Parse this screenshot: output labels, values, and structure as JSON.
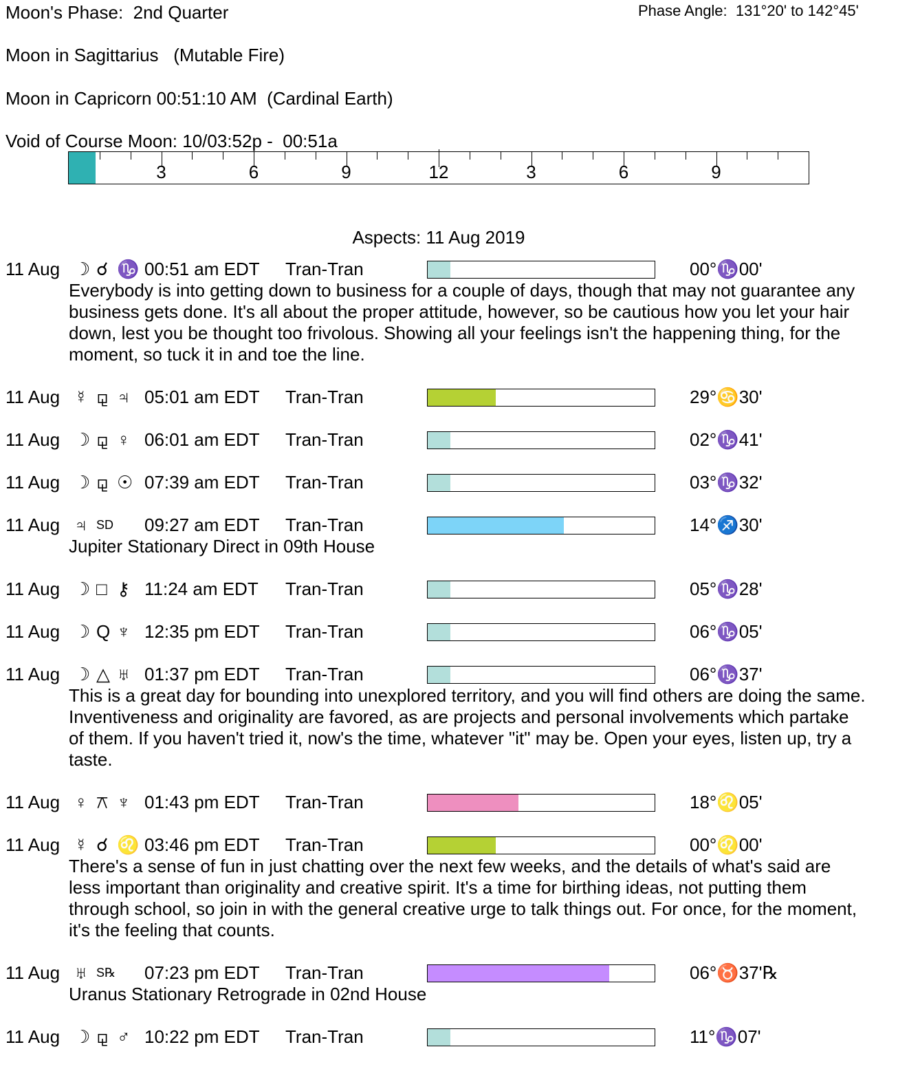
{
  "header": {
    "phase": "Moon's Phase:  2nd Quarter",
    "phase_angle": "Phase Angle:  131°20' to 142°45'",
    "moon_sign": "Moon in Sagittarius   (Mutable Fire)",
    "moon_ingress": "Moon in Capricorn 00:51:10 AM  (Cardinal Earth)",
    "void": "Void of Course Moon: 10/03:52p -  00:51a"
  },
  "timeline": {
    "labels": [
      "3",
      "6",
      "9",
      "12",
      "3",
      "6",
      "9"
    ],
    "void_fraction": 0.036,
    "void_color": "#2fb1b2"
  },
  "aspects_title": "Aspects: 11 Aug 2019",
  "entries": [
    {
      "date": "11 Aug",
      "p1": "☽",
      "asp": "☌",
      "p2": "♑",
      "time": "00:51 am EDT",
      "type": "Tran-Tran",
      "strength": 0.1,
      "color": "#b3dfdb",
      "pos": "00°♑00'",
      "desc": "Everybody is into getting down to business for a couple of days, though that may not guarantee any business gets done. It's all about the proper attitude, however, so be cautious how you let your hair down, lest you be thought too frivolous. Showing all your feelings isn't the happening thing, for the moment, so tuck it in and toe the line."
    },
    {
      "date": "11 Aug",
      "p1": "☿",
      "asp": "⚼",
      "p2": "♃",
      "time": "05:01 am EDT",
      "type": "Tran-Tran",
      "strength": 0.3,
      "color": "#b5d134",
      "pos": "29°♋30'"
    },
    {
      "date": "11 Aug",
      "p1": "☽",
      "asp": "⚼",
      "p2": "♀",
      "time": "06:01 am EDT",
      "type": "Tran-Tran",
      "strength": 0.1,
      "color": "#b3dfdb",
      "pos": "02°♑41'"
    },
    {
      "date": "11 Aug",
      "p1": "☽",
      "asp": "⚼",
      "p2": "☉",
      "time": "07:39 am EDT",
      "type": "Tran-Tran",
      "strength": 0.1,
      "color": "#b3dfdb",
      "pos": "03°♑32'"
    },
    {
      "date": "11 Aug",
      "p1": "♃",
      "asp": "SD",
      "p2": "",
      "time": "09:27 am EDT",
      "type": "Tran-Tran",
      "strength": 0.6,
      "color": "#7dd4f8",
      "pos": "14°♐30'",
      "desc": "Jupiter Stationary Direct in 09th House"
    },
    {
      "date": "11 Aug",
      "p1": "☽",
      "asp": "□",
      "p2": "⚷",
      "time": "11:24 am EDT",
      "type": "Tran-Tran",
      "strength": 0.1,
      "color": "#b3dfdb",
      "pos": "05°♑28'"
    },
    {
      "date": "11 Aug",
      "p1": "☽",
      "asp": "Q",
      "p2": "♆",
      "time": "12:35 pm EDT",
      "type": "Tran-Tran",
      "strength": 0.1,
      "color": "#b3dfdb",
      "pos": "06°♑05'"
    },
    {
      "date": "11 Aug",
      "p1": "☽",
      "asp": "△",
      "p2": "♅",
      "time": "01:37 pm EDT",
      "type": "Tran-Tran",
      "strength": 0.1,
      "color": "#b3dfdb",
      "pos": "06°♑37'",
      "desc": "This is a great day for bounding into unexplored territory, and you will find others are doing the same. Inventiveness and originality are favored, as are projects and personal involvements which partake of them. If you haven't tried it, now's the time, whatever \"it\" may be. Open your eyes, listen up, try a taste."
    },
    {
      "date": "11 Aug",
      "p1": "♀",
      "asp": "⚻",
      "p2": "♆",
      "time": "01:43 pm EDT",
      "type": "Tran-Tran",
      "strength": 0.4,
      "color": "#ee8fbf",
      "pos": "18°♌05'"
    },
    {
      "date": "11 Aug",
      "p1": "☿",
      "asp": "☌",
      "p2": "♌",
      "time": "03:46 pm EDT",
      "type": "Tran-Tran",
      "strength": 0.3,
      "color": "#b5d134",
      "pos": "00°♌00'",
      "desc": "There's a sense of fun in just chatting over the next few weeks, and the details of what's said are less important than originality and creative spirit. It's a time for birthing ideas, not putting them through school, so join in with the general creative urge to talk things out. For once, for the moment, it's the feeling that counts."
    },
    {
      "date": "11 Aug",
      "p1": "♅",
      "asp": "S℞",
      "p2": "",
      "time": "07:23 pm EDT",
      "type": "Tran-Tran",
      "strength": 0.8,
      "color": "#c58cff",
      "pos": "06°♉37'℞",
      "desc": "Uranus Stationary Retrograde in 02nd House"
    },
    {
      "date": "11 Aug",
      "p1": "☽",
      "asp": "⚼",
      "p2": "♂",
      "time": "10:22 pm EDT",
      "type": "Tran-Tran",
      "strength": 0.1,
      "color": "#b3dfdb",
      "pos": "11°♑07'"
    }
  ]
}
